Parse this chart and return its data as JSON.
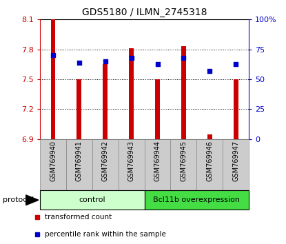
{
  "title": "GDS5180 / ILMN_2745318",
  "samples": [
    "GSM769940",
    "GSM769941",
    "GSM769942",
    "GSM769943",
    "GSM769944",
    "GSM769945",
    "GSM769946",
    "GSM769947"
  ],
  "bar_values": [
    8.1,
    7.5,
    7.65,
    7.81,
    7.5,
    7.83,
    6.95,
    7.5
  ],
  "percentile_values": [
    70,
    64,
    65,
    68,
    63,
    68,
    57,
    63
  ],
  "y_min": 6.9,
  "y_max": 8.1,
  "y_ticks": [
    6.9,
    7.2,
    7.5,
    7.8,
    8.1
  ],
  "y_right_ticks": [
    0,
    25,
    50,
    75,
    100
  ],
  "bar_color": "#cc0000",
  "dot_color": "#0000cc",
  "bar_width": 0.18,
  "control_color": "#ccffcc",
  "overexp_color": "#44dd44",
  "xtick_bg_color": "#cccccc",
  "group_labels": [
    "control",
    "Bcl11b overexpression"
  ],
  "legend_items": [
    "transformed count",
    "percentile rank within the sample"
  ],
  "protocol_label": "protocol"
}
